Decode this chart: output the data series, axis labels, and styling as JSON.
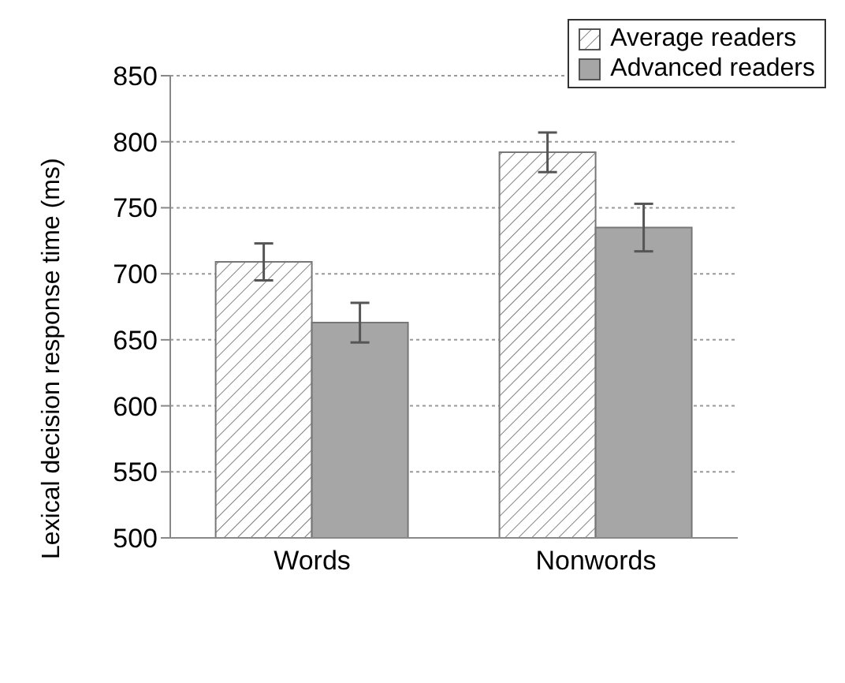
{
  "chart_data": {
    "type": "bar",
    "ylabel": "Lexical decision response time (ms)",
    "categories": [
      "Words",
      "Nonwords"
    ],
    "series": [
      {
        "name": "Average readers",
        "color": "#808080",
        "values": [
          709,
          792
        ],
        "errors": [
          14,
          15
        ]
      },
      {
        "name": "Advanced readers",
        "color": "#a6a6a6",
        "values": [
          663,
          735
        ],
        "errors": [
          15,
          18
        ]
      }
    ],
    "ylim": [
      500,
      850
    ],
    "yticks": [
      500,
      550,
      600,
      650,
      700,
      750,
      800,
      850
    ],
    "grid": "y",
    "legend": "top right"
  }
}
